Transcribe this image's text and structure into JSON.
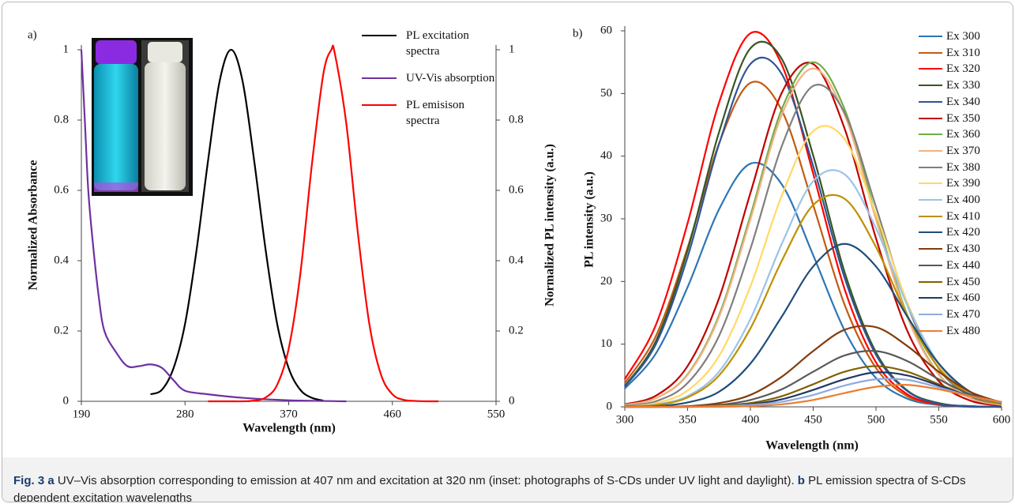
{
  "chart_data": [
    {
      "type": "line",
      "label": "a)",
      "xlabel": "Wavelength (nm)",
      "ylabel": "Normalized Absorbance",
      "y2label": "Normalized PL intensity (a.u.)",
      "xlim": [
        190,
        550
      ],
      "xticks": [
        190,
        280,
        370,
        460,
        550
      ],
      "ylim": [
        0,
        1
      ],
      "yticks": [
        0,
        0.2,
        0.4,
        0.6,
        0.8,
        1
      ],
      "y2lim": [
        0,
        1
      ],
      "y2ticks": [
        0,
        0.2,
        0.4,
        0.6,
        0.8,
        1
      ],
      "grid": false,
      "legend": "upper right",
      "series": [
        {
          "name": "PL excitation spectra",
          "color": "#000000",
          "axis": "y2",
          "x": [
            250,
            260,
            270,
            280,
            290,
            300,
            310,
            320,
            330,
            340,
            350,
            360,
            370,
            380,
            390,
            400
          ],
          "values": [
            0.02,
            0.033,
            0.094,
            0.22,
            0.43,
            0.685,
            0.91,
            1,
            0.91,
            0.685,
            0.43,
            0.22,
            0.094,
            0.033,
            0.01,
            0.002
          ]
        },
        {
          "name": "UV-Vis absorption",
          "color": "#7030a0",
          "x": [
            190,
            193,
            196,
            200,
            205,
            210,
            220,
            230,
            240,
            250,
            260,
            270,
            280,
            300,
            330,
            370,
            420
          ],
          "values": [
            1,
            0.8,
            0.6,
            0.45,
            0.3,
            0.2,
            0.14,
            0.1,
            0.1,
            0.105,
            0.095,
            0.06,
            0.03,
            0.02,
            0.01,
            0.003,
            0
          ]
        },
        {
          "name": "PL emisison spectra",
          "color": "#ff0000",
          "axis": "y2",
          "x": [
            300,
            310,
            320,
            330,
            340,
            350,
            360,
            370,
            380,
            390,
            400,
            407,
            410,
            420,
            430,
            440,
            450,
            460,
            470,
            480,
            490,
            500
          ],
          "values": [
            0,
            0,
            0,
            0,
            0.002,
            0.011,
            0.047,
            0.15,
            0.36,
            0.67,
            0.93,
            1,
            0.99,
            0.79,
            0.48,
            0.22,
            0.077,
            0.02,
            0.004,
            0.001,
            0,
            0
          ]
        }
      ]
    },
    {
      "type": "line",
      "label": "b)",
      "xlabel": "Wavelength (nm)",
      "ylabel": "PL intensity (a.u.)",
      "xlim": [
        300,
        600
      ],
      "xticks": [
        300,
        350,
        400,
        450,
        500,
        550,
        600
      ],
      "ylim": [
        0,
        60
      ],
      "yticks": [
        0,
        10,
        20,
        30,
        40,
        50,
        60
      ],
      "grid": false,
      "legend": "upper right",
      "x": [
        300,
        325,
        350,
        375,
        400,
        425,
        450,
        475,
        500,
        525,
        550,
        575,
        600
      ],
      "series": [
        {
          "name": "Ex 300",
          "color": "#2e75b6",
          "values": [
            2.9,
            8.6,
            19.1,
            31.5,
            38.8,
            35.5,
            24.2,
            12.2,
            4.6,
            1.3,
            0.3,
            0,
            0
          ]
        },
        {
          "name": "Ex 310",
          "color": "#c55a11",
          "values": [
            3.8,
            11.4,
            25.4,
            42.0,
            51.7,
            47.3,
            32.2,
            16.3,
            6.2,
            1.7,
            0.4,
            0.1,
            0
          ]
        },
        {
          "name": "Ex 320",
          "color": "#ff0000",
          "values": [
            4.4,
            13.2,
            29.3,
            48.5,
            59.6,
            54.6,
            37.2,
            18.8,
            7.1,
            2.0,
            0.4,
            0.1,
            0
          ]
        },
        {
          "name": "Ex 330",
          "color": "#375623",
          "values": [
            3.3,
            10.6,
            25.0,
            43.8,
            57.2,
            55.5,
            40.1,
            21.5,
            8.7,
            2.6,
            0.6,
            0.1,
            0
          ]
        },
        {
          "name": "Ex 340",
          "color": "#2f5597",
          "values": [
            3.2,
            10.1,
            23.9,
            41.9,
            54.7,
            53.1,
            38.4,
            20.6,
            8.3,
            2.5,
            0.5,
            0.1,
            0
          ]
        },
        {
          "name": "Ex 350",
          "color": "#c00000",
          "values": [
            0.4,
            1.8,
            6.5,
            17.3,
            34.1,
            50.1,
            54.7,
            44.4,
            26.9,
            12.1,
            4.1,
            1.0,
            0.2
          ]
        },
        {
          "name": "Ex 360",
          "color": "#70ad47",
          "values": [
            0.3,
            1.4,
            5.2,
            14.6,
            30.5,
            47.5,
            55,
            47.5,
            30.5,
            14.6,
            5.2,
            1.4,
            0.3
          ]
        },
        {
          "name": "Ex 370",
          "color": "#f4b183",
          "values": [
            0.3,
            1.4,
            5.1,
            14.3,
            29.9,
            46.6,
            54,
            46.6,
            29.9,
            14.3,
            5.1,
            1.4,
            0.3
          ]
        },
        {
          "name": "Ex 380",
          "color": "#7f7f7f",
          "values": [
            0.2,
            0.9,
            3.8,
            11.3,
            25.2,
            41.6,
            51.2,
            46.9,
            31.9,
            16.2,
            6.1,
            1.7,
            0.4
          ]
        },
        {
          "name": "Ex 390",
          "color": "#ffd966",
          "values": [
            0.1,
            0.6,
            2.6,
            8.1,
            19.2,
            33.7,
            44.0,
            42.7,
            30.8,
            16.6,
            6.7,
            2.0,
            0.4
          ]
        },
        {
          "name": "Ex 400",
          "color": "#9dc3e6",
          "values": [
            0.1,
            0.4,
            1.7,
            5.6,
            14.0,
            26.0,
            36.0,
            37.1,
            28.5,
            16.2,
            6.9,
            2.2,
            0.5
          ]
        },
        {
          "name": "Ex 410",
          "color": "#bf9000",
          "values": [
            0.1,
            0.3,
            1.5,
            5.0,
            12.5,
            23.3,
            32.2,
            33.2,
            25.5,
            14.5,
            6.2,
            1.9,
            0.4
          ]
        },
        {
          "name": "Ex 420",
          "color": "#1f4e79",
          "values": [
            0,
            0.1,
            0.7,
            2.4,
            6.9,
            14.4,
            22.4,
            26,
            22.4,
            14.4,
            6.9,
            2.4,
            0.7
          ]
        },
        {
          "name": "Ex 430",
          "color": "#843c0c",
          "values": [
            0,
            0,
            0.1,
            0.6,
            1.9,
            4.8,
            8.9,
            12.3,
            12.7,
            9.7,
            5.6,
            2.4,
            0.7
          ]
        },
        {
          "name": "Ex 440",
          "color": "#595959",
          "values": [
            0,
            0,
            0.1,
            0.3,
            1.1,
            2.8,
            5.6,
            8.2,
            8.9,
            7.3,
            4.4,
            2.0,
            0.7
          ]
        },
        {
          "name": "Ex 450",
          "color": "#7f6000",
          "values": [
            0,
            0,
            0,
            0.2,
            0.6,
            1.7,
            3.6,
            5.6,
            6.5,
            5.6,
            3.6,
            1.7,
            0.6
          ]
        },
        {
          "name": "Ex 460",
          "color": "#203864",
          "values": [
            0,
            0,
            0,
            0.1,
            0.4,
            1.2,
            2.7,
            4.4,
            5.5,
            5.0,
            3.4,
            1.7,
            0.7
          ]
        },
        {
          "name": "Ex 470",
          "color": "#8faadc",
          "values": [
            0,
            0,
            0,
            0.1,
            0.3,
            0.8,
            1.9,
            3.4,
            4.4,
            4.3,
            3.1,
            1.7,
            0.7
          ]
        },
        {
          "name": "Ex 480",
          "color": "#ed7d31",
          "values": [
            0,
            0,
            0,
            0,
            0.1,
            0.4,
            1.1,
            2.2,
            3.2,
            3.5,
            2.8,
            1.7,
            0.8
          ]
        }
      ]
    }
  ],
  "caption": {
    "label": "Fig. 3",
    "a_label": "a",
    "a_text": "UV–Vis absorption corresponding to emission at 407 nm and excitation at 320 nm (inset: photographs of S-CDs under UV light and daylight).",
    "b_label": "b",
    "b_text": "PL emission spectra of S-CDs dependent excitation wavelengths"
  }
}
